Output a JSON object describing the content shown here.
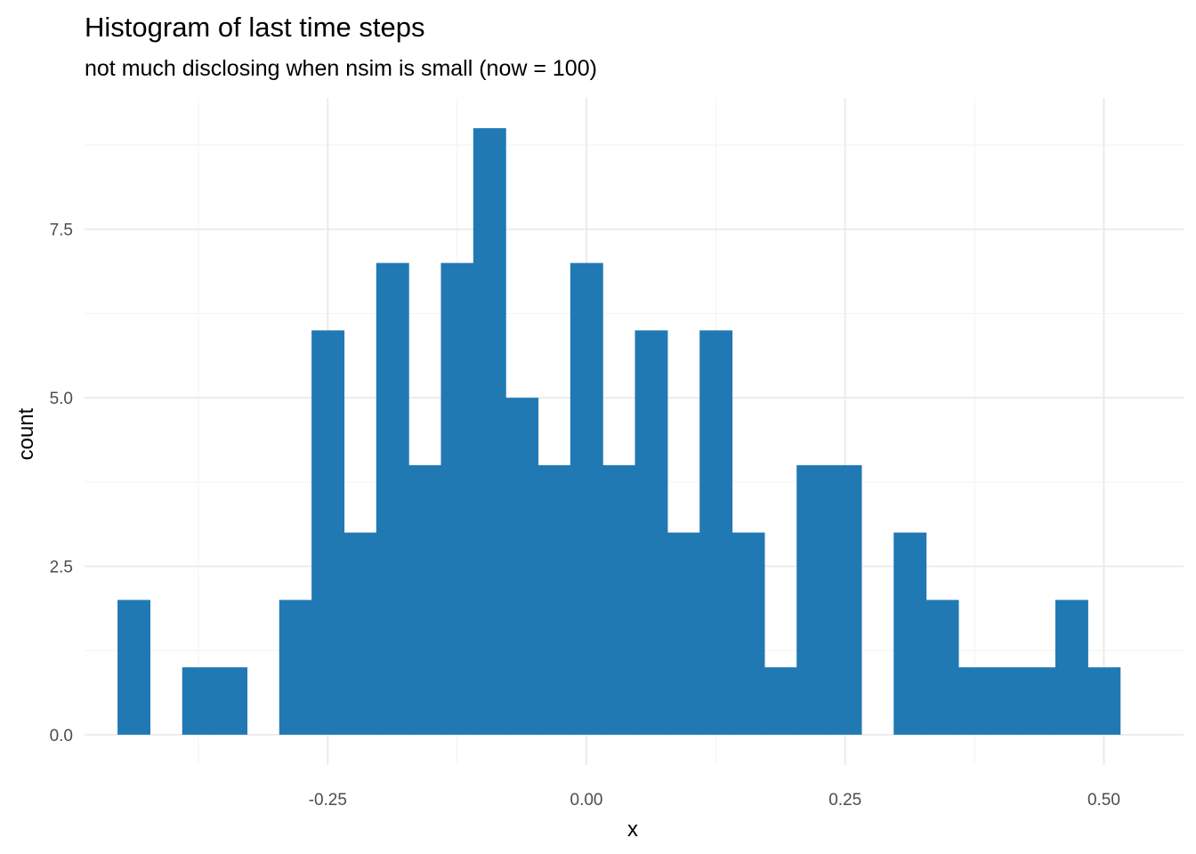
{
  "chart_data": {
    "type": "bar",
    "title": "Histogram of last time steps",
    "subtitle": "not much disclosing when nsim is small (now = 100)",
    "xlabel": "x",
    "ylabel": "count",
    "xlim": [
      -0.485,
      0.577
    ],
    "ylim": [
      -0.45,
      9.45
    ],
    "x_ticks": [
      -0.25,
      0.0,
      0.25,
      0.5
    ],
    "x_tick_labels": [
      "-0.25",
      "0.00",
      "0.25",
      "0.50"
    ],
    "y_ticks": [
      0,
      2.5,
      5.0,
      7.5
    ],
    "y_tick_labels": [
      "0.0",
      "2.5",
      "5.0",
      "7.5"
    ],
    "grid": true,
    "legend": "none",
    "bar_color": "#2179b4",
    "bin_width": 0.03125,
    "bin_centers": [
      -0.4375,
      -0.40625,
      -0.375,
      -0.34375,
      -0.3125,
      -0.28125,
      -0.25,
      -0.21875,
      -0.1875,
      -0.15625,
      -0.125,
      -0.09375,
      -0.0625,
      -0.03125,
      0.0,
      0.03125,
      0.0625,
      0.09375,
      0.125,
      0.15625,
      0.1875,
      0.21875,
      0.25,
      0.28125,
      0.3125,
      0.34375,
      0.375,
      0.40625,
      0.4375,
      0.46875,
      0.5,
      0.53125
    ],
    "values": [
      2,
      0,
      1,
      1,
      0,
      2,
      6,
      3,
      7,
      4,
      7,
      9,
      5,
      4,
      7,
      4,
      6,
      3,
      6,
      3,
      1,
      4,
      4,
      0,
      3,
      2,
      1,
      1,
      1,
      2,
      1,
      0
    ]
  }
}
